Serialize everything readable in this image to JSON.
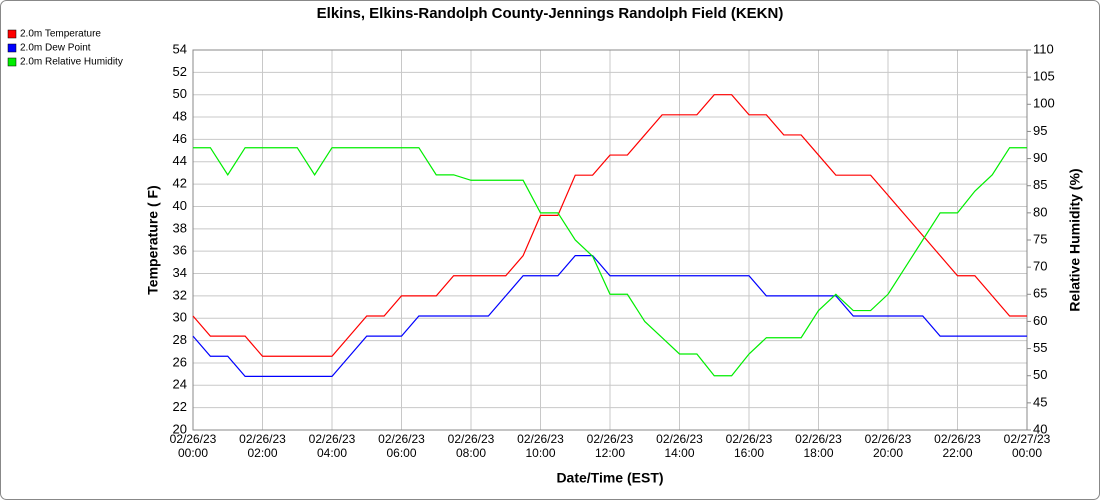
{
  "chart_data": {
    "type": "line",
    "title": "Elkins, Elkins-Randolph County-Jennings Randolph Field (KEKN)",
    "x_label": "Date/Time (EST)",
    "y_label": "Temperature ( F)",
    "y2_label": "Relative Humidity (%)",
    "x": [
      "02/26/23 00:00",
      "02/26/23 00:30",
      "02/26/23 01:00",
      "02/26/23 01:30",
      "02/26/23 02:00",
      "02/26/23 02:30",
      "02/26/23 03:00",
      "02/26/23 03:30",
      "02/26/23 04:00",
      "02/26/23 04:30",
      "02/26/23 05:00",
      "02/26/23 05:30",
      "02/26/23 06:00",
      "02/26/23 06:30",
      "02/26/23 07:00",
      "02/26/23 07:30",
      "02/26/23 08:00",
      "02/26/23 08:30",
      "02/26/23 09:00",
      "02/26/23 09:30",
      "02/26/23 10:00",
      "02/26/23 10:30",
      "02/26/23 11:00",
      "02/26/23 11:30",
      "02/26/23 12:00",
      "02/26/23 12:30",
      "02/26/23 13:00",
      "02/26/23 13:30",
      "02/26/23 14:00",
      "02/26/23 14:30",
      "02/26/23 15:00",
      "02/26/23 15:30",
      "02/26/23 16:00",
      "02/26/23 16:30",
      "02/26/23 17:00",
      "02/26/23 17:30",
      "02/26/23 18:00",
      "02/26/23 18:30",
      "02/26/23 19:00",
      "02/26/23 19:30",
      "02/26/23 20:00",
      "02/26/23 20:30",
      "02/26/23 21:00",
      "02/26/23 21:30",
      "02/26/23 22:00",
      "02/26/23 22:30",
      "02/26/23 23:00",
      "02/26/23 23:30",
      "02/27/23 00:00"
    ],
    "series": [
      {
        "name": "2.0m Temperature",
        "color": "#ff0000",
        "values": [
          30.2,
          28.4,
          28.4,
          28.4,
          26.6,
          26.6,
          26.6,
          26.6,
          26.6,
          28.4,
          30.2,
          30.2,
          32,
          32,
          32,
          33.8,
          33.8,
          33.8,
          33.8,
          35.6,
          39.2,
          39.2,
          42.8,
          42.8,
          44.6,
          44.6,
          46.4,
          48.2,
          48.2,
          48.2,
          50,
          50,
          48.2,
          48.2,
          46.4,
          46.4,
          44.6,
          42.8,
          42.8,
          42.8,
          41,
          39.2,
          37.4,
          35.6,
          33.8,
          33.8,
          32,
          30.2,
          30.2
        ]
      },
      {
        "name": "2.0m Dew Point",
        "color": "#0000ff",
        "values": [
          28.4,
          26.6,
          26.6,
          24.8,
          24.8,
          24.8,
          24.8,
          24.8,
          24.8,
          26.6,
          28.4,
          28.4,
          28.4,
          30.2,
          30.2,
          30.2,
          30.2,
          30.2,
          32,
          33.8,
          33.8,
          33.8,
          35.6,
          35.6,
          33.8,
          33.8,
          33.8,
          33.8,
          33.8,
          33.8,
          33.8,
          33.8,
          33.8,
          32,
          32,
          32,
          32,
          32,
          30.2,
          30.2,
          30.2,
          30.2,
          30.2,
          28.4,
          28.4,
          28.4,
          28.4,
          28.4,
          28.4
        ]
      },
      {
        "name": "2.0m Relative Humidity",
        "color": "#00ee00",
        "axis": "y2",
        "values": [
          92,
          92,
          87,
          92,
          92,
          92,
          92,
          87,
          92,
          92,
          92,
          92,
          92,
          92,
          87,
          87,
          86,
          86,
          86,
          86,
          80,
          80,
          75,
          72,
          65,
          65,
          60,
          57,
          54,
          54,
          50,
          50,
          54,
          57,
          57,
          57,
          62,
          65,
          62,
          62,
          65,
          70,
          75,
          80,
          80,
          84,
          87,
          92,
          92
        ]
      }
    ],
    "ylim": [
      20,
      54
    ],
    "yticks": [
      20,
      22,
      24,
      26,
      28,
      30,
      32,
      34,
      36,
      38,
      40,
      42,
      44,
      46,
      48,
      50,
      52,
      54
    ],
    "y2lim": [
      40,
      110
    ],
    "y2ticks": [
      40,
      45,
      50,
      55,
      60,
      65,
      70,
      75,
      80,
      85,
      90,
      95,
      100,
      105,
      110
    ],
    "xlim": [
      "02/26/23 00:00",
      "02/27/23 00:00"
    ],
    "xticks": [
      "02/26/23 00:00",
      "02/26/23 02:00",
      "02/26/23 04:00",
      "02/26/23 06:00",
      "02/26/23 08:00",
      "02/26/23 10:00",
      "02/26/23 12:00",
      "02/26/23 14:00",
      "02/26/23 16:00",
      "02/26/23 18:00",
      "02/26/23 20:00",
      "02/26/23 22:00",
      "02/27/23 00:00"
    ],
    "grid": true,
    "legend": "top-left"
  }
}
